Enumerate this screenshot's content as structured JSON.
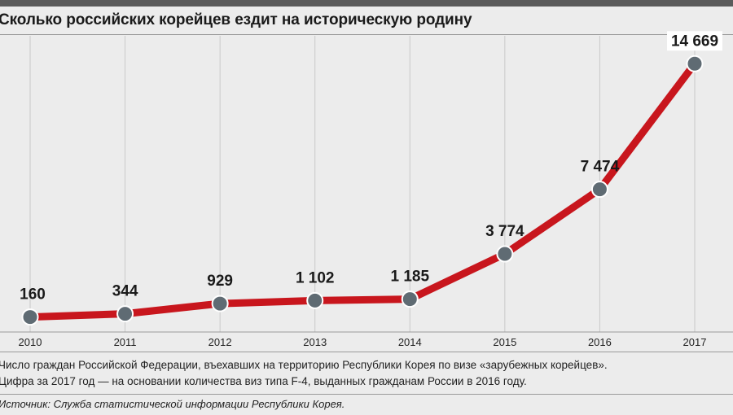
{
  "title": "Сколько российских корейцев ездит на историческую родину",
  "notes": [
    "Число граждан Российской Федерации, въехавших на территорию Республики Корея по визе «зарубежных корейцев».",
    "Цифра за 2017 год — на основании количества виз типа F-4, выданных гражданам России в 2016 году."
  ],
  "source": "Источник: Служба статистической информации Республики Корея.",
  "colors": {
    "line": "#c8161d",
    "marker": "#5f6b73",
    "grid": "#c9c9c9",
    "text": "#1a1a1a"
  },
  "chart_data": {
    "type": "line",
    "title": "Сколько российских корейцев ездит на историческую родину",
    "xlabel": "",
    "ylabel": "",
    "x": [
      "2010",
      "2011",
      "2012",
      "2013",
      "2014",
      "2015",
      "2016",
      "2017"
    ],
    "values": [
      160,
      344,
      929,
      1102,
      1185,
      3774,
      7474,
      14669
    ],
    "value_labels": [
      "160",
      "344",
      "929",
      "1 102",
      "1 185",
      "3 774",
      "7 474",
      "14 669"
    ],
    "ylim": [
      0,
      15800
    ],
    "grid": "vertical"
  }
}
